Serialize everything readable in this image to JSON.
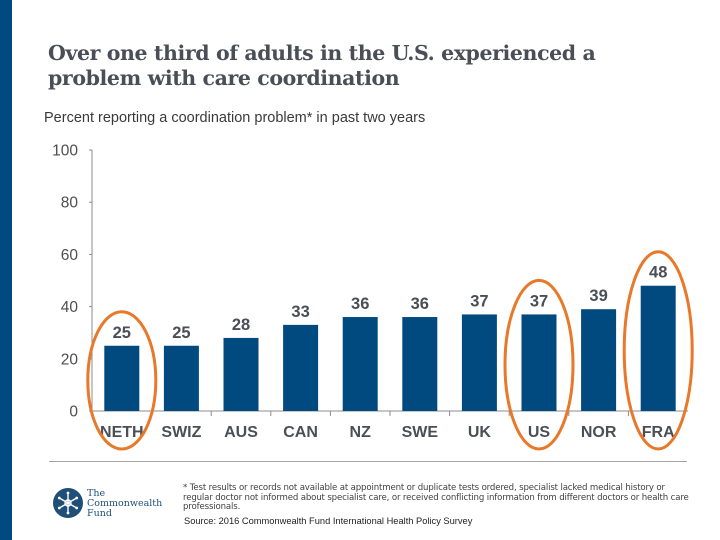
{
  "slide": {
    "title": "Over one third of adults in the U.S. experienced a problem with care coordination",
    "subtitle": "Percent reporting a coordination problem* in past two years",
    "footnote": "* Test results or records not available at appointment or duplicate tests ordered, specialist lacked medical history or regular doctor not informed about specialist care, or received conflicting information from different doctors or health care professionals.",
    "source": "Source: 2016 Commonwealth Fund International Health Policy Survey",
    "logo": {
      "icon": "snowflake-emblem-icon",
      "lines": [
        "The",
        "Commonwealth",
        "Fund"
      ]
    },
    "colors": {
      "accent_bar": "#004a80",
      "bar": "#004a80",
      "highlight_ellipse": "#e8782a",
      "title_text": "#4a4e57"
    }
  },
  "chart_data": {
    "type": "bar",
    "title": "Percent reporting a coordination problem* in past two years",
    "xlabel": "",
    "ylabel": "",
    "categories": [
      "NETH",
      "SWIZ",
      "AUS",
      "CAN",
      "NZ",
      "SWE",
      "UK",
      "US",
      "NOR",
      "FRA"
    ],
    "values": [
      25,
      25,
      28,
      33,
      36,
      36,
      37,
      37,
      39,
      48
    ],
    "data_labels": [
      "25",
      "25",
      "28",
      "33",
      "36",
      "36",
      "37",
      "37",
      "39",
      "48"
    ],
    "ylim": [
      0,
      100
    ],
    "yticks": [
      0,
      20,
      40,
      60,
      80,
      100
    ],
    "grid": false,
    "legend": "none",
    "highlighted_categories": [
      "NETH",
      "US",
      "FRA"
    ]
  }
}
